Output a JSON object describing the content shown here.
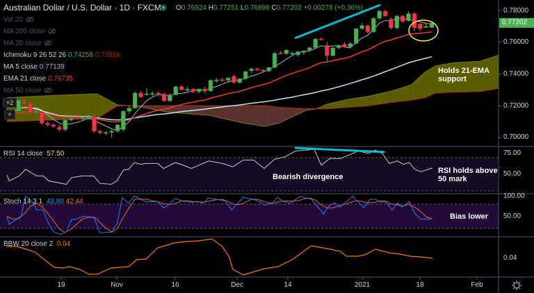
{
  "header": {
    "title": "Australian Dollar / U.S. Dollar · 1D · FXCM",
    "o_label": "O",
    "o": "0.76924",
    "h_label": "H",
    "h": "0.77251",
    "l_label": "L",
    "l": "0.76898",
    "c_label": "C",
    "c": "0.77202",
    "change": "+0.00278 (+0.36%)"
  },
  "legend": {
    "vol": "Vol 20",
    "ma200": "MA 200 close",
    "ma20": "MA 20 close",
    "ichimoku": "Ichimoku 9 26 52 26",
    "ichimoku_a": "0.74259",
    "ichimoku_b": "0.72816",
    "ma5": "MA 5 close",
    "ma5_value": "0.77139",
    "ema21": "EMA 21 close",
    "ema21_value": "0.76735",
    "ma50": "MA 50 close",
    "collapse_count": "+2",
    "collapse_arrow": "^"
  },
  "annotations": {
    "ema_support": "Holds 21-EMA support",
    "bearish_div": "Bearish divergence",
    "rsi_holds": "RSI holds above 50 mark",
    "bias_lower": "Bias lower"
  },
  "price_axis": {
    "ticks": [
      "0.78000",
      "0.76000",
      "0.74000",
      "0.72000",
      "0.70000"
    ],
    "current": "0.77202"
  },
  "panes": {
    "rsi": {
      "label": "RSI 14 close",
      "value": "57.50",
      "ticks": [
        "75.00",
        "50.00"
      ]
    },
    "stoch": {
      "label": "Stoch 14 3 1",
      "k": "43.80",
      "d": "42.44",
      "ticks": [
        "100.00",
        "50.00"
      ]
    },
    "bbw": {
      "label": "BBW 20 close 2",
      "value": "0.04",
      "ticks": [
        "0.04"
      ]
    }
  },
  "time_axis": [
    "19",
    "Nov",
    "16",
    "Dec",
    "14",
    "2021",
    "18",
    "Feb"
  ],
  "colors": {
    "up": "#4caf50",
    "down": "#f23645",
    "ma5": "#9fb7cf",
    "ema21": "#f23a2e",
    "ma_long": "#b2ebf2",
    "cloud_up": "#6b6b00",
    "cloud_down": "#6b3a35",
    "rsi": "#d8c8b8",
    "stoch_k": "#2979ff",
    "stoch_d": "#f2641d",
    "bbw": "#f57c00",
    "trend": "#00bcd4",
    "highlight": "#ffeb3b"
  },
  "chart_data": {
    "type": "candlestick",
    "title": "Australian Dollar / U.S. Dollar · 1D · FXCM",
    "ylim": [
      0.695,
      0.785
    ],
    "ohlc": [
      [
        0.717,
        0.7185,
        0.7135,
        0.7145
      ],
      [
        0.7145,
        0.717,
        0.713,
        0.7165
      ],
      [
        0.7165,
        0.724,
        0.716,
        0.7235
      ],
      [
        0.7225,
        0.724,
        0.721,
        0.7215
      ],
      [
        0.721,
        0.722,
        0.715,
        0.716
      ],
      [
        0.716,
        0.7175,
        0.715,
        0.7165
      ],
      [
        0.716,
        0.7165,
        0.708,
        0.709
      ],
      [
        0.709,
        0.71,
        0.707,
        0.708
      ],
      [
        0.708,
        0.709,
        0.706,
        0.707
      ],
      [
        0.7065,
        0.708,
        0.704,
        0.705
      ],
      [
        0.705,
        0.7115,
        0.704,
        0.711
      ],
      [
        0.711,
        0.7125,
        0.71,
        0.712
      ],
      [
        0.713,
        0.714,
        0.7115,
        0.712
      ],
      [
        0.712,
        0.7135,
        0.711,
        0.7128
      ],
      [
        0.7125,
        0.714,
        0.7115,
        0.713
      ],
      [
        0.713,
        0.714,
        0.703,
        0.704
      ],
      [
        0.704,
        0.705,
        0.702,
        0.703
      ],
      [
        0.703,
        0.704,
        0.7015,
        0.7032
      ],
      [
        0.7032,
        0.705,
        0.7,
        0.704
      ],
      [
        0.704,
        0.7085,
        0.703,
        0.708
      ],
      [
        0.705,
        0.717,
        0.704,
        0.7165
      ],
      [
        0.7165,
        0.72,
        0.715,
        0.7185
      ],
      [
        0.7185,
        0.729,
        0.718,
        0.728
      ],
      [
        0.728,
        0.729,
        0.725,
        0.7255
      ],
      [
        0.727,
        0.731,
        0.7265,
        0.7275
      ],
      [
        0.7275,
        0.729,
        0.726,
        0.7278
      ],
      [
        0.728,
        0.729,
        0.726,
        0.7276
      ],
      [
        0.7275,
        0.728,
        0.7225,
        0.723
      ],
      [
        0.723,
        0.728,
        0.7225,
        0.7268
      ],
      [
        0.7268,
        0.7325,
        0.7265,
        0.732
      ],
      [
        0.732,
        0.733,
        0.7295,
        0.73
      ],
      [
        0.73,
        0.732,
        0.729,
        0.7305
      ],
      [
        0.7305,
        0.731,
        0.728,
        0.7288
      ],
      [
        0.7288,
        0.731,
        0.728,
        0.7305
      ],
      [
        0.7305,
        0.732,
        0.728,
        0.7292
      ],
      [
        0.7292,
        0.7365,
        0.729,
        0.736
      ],
      [
        0.736,
        0.7375,
        0.7345,
        0.7362
      ],
      [
        0.7364,
        0.7375,
        0.735,
        0.736
      ],
      [
        0.736,
        0.738,
        0.735,
        0.7375
      ],
      [
        0.7385,
        0.7395,
        0.734,
        0.7345
      ],
      [
        0.7345,
        0.7375,
        0.734,
        0.737
      ],
      [
        0.737,
        0.742,
        0.736,
        0.7415
      ],
      [
        0.742,
        0.744,
        0.7405,
        0.7432
      ],
      [
        0.7432,
        0.744,
        0.742,
        0.7425
      ],
      [
        0.7425,
        0.743,
        0.7412,
        0.7418
      ],
      [
        0.7418,
        0.7445,
        0.741,
        0.744
      ],
      [
        0.744,
        0.754,
        0.7435,
        0.753
      ],
      [
        0.7532,
        0.7545,
        0.7525,
        0.7528
      ],
      [
        0.7528,
        0.7555,
        0.752,
        0.755
      ],
      [
        0.753,
        0.754,
        0.752,
        0.7532
      ],
      [
        0.752,
        0.7545,
        0.751,
        0.754
      ],
      [
        0.7535,
        0.755,
        0.752,
        0.7545
      ],
      [
        0.755,
        0.757,
        0.754,
        0.7565
      ],
      [
        0.7565,
        0.7625,
        0.756,
        0.762
      ],
      [
        0.7622,
        0.763,
        0.761,
        0.7618
      ],
      [
        0.758,
        0.76,
        0.748,
        0.7515
      ],
      [
        0.7515,
        0.757,
        0.751,
        0.7565
      ],
      [
        0.7565,
        0.7585,
        0.7555,
        0.758
      ],
      [
        0.7588,
        0.76,
        0.7565,
        0.757
      ],
      [
        0.757,
        0.76,
        0.756,
        0.7592
      ],
      [
        0.7592,
        0.769,
        0.7585,
        0.7685
      ],
      [
        0.7685,
        0.772,
        0.768,
        0.7705
      ],
      [
        0.7705,
        0.771,
        0.7655,
        0.7665
      ],
      [
        0.7665,
        0.776,
        0.766,
        0.775
      ],
      [
        0.775,
        0.7805,
        0.774,
        0.7795
      ],
      [
        0.7795,
        0.7805,
        0.776,
        0.7765
      ],
      [
        0.7745,
        0.7755,
        0.768,
        0.769
      ],
      [
        0.769,
        0.777,
        0.768,
        0.7765
      ],
      [
        0.7765,
        0.777,
        0.772,
        0.773
      ],
      [
        0.7735,
        0.7795,
        0.773,
        0.778
      ],
      [
        0.778,
        0.779,
        0.767,
        0.769
      ],
      [
        0.7715,
        0.772,
        0.767,
        0.7685
      ],
      [
        0.7692,
        0.7725,
        0.769,
        0.77
      ],
      [
        0.76924,
        0.77251,
        0.76898,
        0.77202
      ]
    ],
    "ichimoku_cloud": [
      [
        0,
        0.725,
        0.71
      ],
      [
        8,
        0.7265,
        0.711
      ],
      [
        15.5,
        0.7275,
        0.712
      ],
      [
        19,
        0.7205,
        0.72
      ],
      [
        22.7,
        0.7195,
        0.72
      ],
      [
        27.5,
        0.716,
        0.72
      ],
      [
        34.7,
        0.714,
        0.72
      ],
      [
        40.7,
        0.709,
        0.72
      ],
      [
        44.3,
        0.707,
        0.72
      ],
      [
        46.7,
        0.709,
        0.719
      ],
      [
        49,
        0.713,
        0.7185
      ],
      [
        51.4,
        0.717,
        0.7182
      ],
      [
        53.2,
        0.7181,
        0.718
      ],
      [
        55,
        0.721,
        0.718
      ],
      [
        58.6,
        0.724,
        0.719
      ],
      [
        62.2,
        0.726,
        0.72
      ],
      [
        65.8,
        0.729,
        0.722
      ],
      [
        69.4,
        0.733,
        0.7235
      ],
      [
        71.8,
        0.741,
        0.725
      ],
      [
        73.6,
        0.745,
        0.728
      ],
      [
        76.6,
        0.747,
        0.7285
      ],
      [
        81.3,
        0.748,
        0.729
      ],
      [
        84.6,
        0.752,
        0.731
      ]
    ],
    "rsi": [
      [
        0,
        49
      ],
      [
        0.4,
        42
      ],
      [
        2.1,
        48
      ],
      [
        3.2,
        56
      ],
      [
        5.1,
        48
      ],
      [
        6.2,
        48
      ],
      [
        7.2,
        42
      ],
      [
        10.2,
        38
      ],
      [
        11.1,
        46
      ],
      [
        12.9,
        48
      ],
      [
        14.9,
        48
      ],
      [
        16,
        39
      ],
      [
        17.9,
        38
      ],
      [
        18.9,
        42
      ],
      [
        20,
        55
      ],
      [
        20.9,
        56
      ],
      [
        21.9,
        64
      ],
      [
        23,
        62
      ],
      [
        23.9,
        63
      ],
      [
        25.9,
        63
      ],
      [
        26.9,
        57
      ],
      [
        28.9,
        64
      ],
      [
        29.9,
        62
      ],
      [
        31.7,
        57
      ],
      [
        34.7,
        66
      ],
      [
        37,
        63
      ],
      [
        38.8,
        59
      ],
      [
        40.6,
        67
      ],
      [
        42.4,
        67
      ],
      [
        44.2,
        57
      ],
      [
        46,
        68
      ],
      [
        47.8,
        71
      ],
      [
        49.6,
        78
      ],
      [
        51.4,
        79
      ],
      [
        52.8,
        80
      ],
      [
        54,
        61
      ],
      [
        55.5,
        69
      ],
      [
        57.3,
        69
      ],
      [
        59.1,
        74
      ],
      [
        60.3,
        78
      ],
      [
        62.1,
        75
      ],
      [
        63.3,
        79
      ],
      [
        64.5,
        75
      ],
      [
        65.7,
        63
      ],
      [
        67.1,
        66
      ],
      [
        68.1,
        62
      ],
      [
        69.1,
        64
      ],
      [
        70.1,
        56
      ],
      [
        71.1,
        53
      ],
      [
        73.1,
        57.5
      ]
    ],
    "stoch_k": [
      [
        0,
        50
      ],
      [
        0.4,
        30
      ],
      [
        2.4,
        50
      ],
      [
        3.2,
        100
      ],
      [
        4.4,
        84
      ],
      [
        5.1,
        66
      ],
      [
        6.2,
        66
      ],
      [
        7.2,
        30
      ],
      [
        8.1,
        11
      ],
      [
        9.2,
        5
      ],
      [
        10.2,
        12
      ],
      [
        11.1,
        41
      ],
      [
        11.9,
        43
      ],
      [
        13.1,
        50
      ],
      [
        14.9,
        48
      ],
      [
        16,
        9
      ],
      [
        17.9,
        11
      ],
      [
        18.9,
        30
      ],
      [
        19.8,
        96
      ],
      [
        20.9,
        82
      ],
      [
        21.9,
        100
      ],
      [
        23.9,
        86
      ],
      [
        25.9,
        86
      ],
      [
        26.9,
        71
      ],
      [
        27.5,
        75
      ],
      [
        28.9,
        94
      ],
      [
        30.2,
        87
      ],
      [
        31.9,
        84
      ],
      [
        32.6,
        87
      ],
      [
        33.7,
        82
      ],
      [
        34.6,
        95
      ],
      [
        36.7,
        90
      ],
      [
        37.6,
        87
      ],
      [
        38.6,
        65
      ],
      [
        40.6,
        97
      ],
      [
        42.7,
        90
      ],
      [
        44.4,
        78
      ],
      [
        45.6,
        82
      ],
      [
        46.5,
        97
      ],
      [
        47.4,
        87
      ],
      [
        48.6,
        82
      ],
      [
        50.4,
        99
      ],
      [
        52.3,
        92
      ],
      [
        54.4,
        56
      ],
      [
        55.3,
        76
      ],
      [
        56.3,
        83
      ],
      [
        57.2,
        73
      ],
      [
        59.4,
        99
      ],
      [
        61.3,
        71
      ],
      [
        62.4,
        92
      ],
      [
        63.3,
        92
      ],
      [
        64.2,
        85
      ],
      [
        65.1,
        85
      ],
      [
        66.2,
        66
      ],
      [
        67.1,
        83
      ],
      [
        67.9,
        73
      ],
      [
        69.1,
        86
      ],
      [
        70.1,
        57
      ],
      [
        71.1,
        43
      ],
      [
        73.1,
        43.8
      ]
    ],
    "bbw": [
      [
        0,
        0.057
      ],
      [
        1.8,
        0.057
      ],
      [
        4.8,
        0.049
      ],
      [
        8.1,
        0.027
      ],
      [
        9.6,
        0.026
      ],
      [
        10.8,
        0.028
      ],
      [
        12.5,
        0.024
      ],
      [
        14.1,
        0.017
      ],
      [
        15.5,
        0.017
      ],
      [
        17.9,
        0.026
      ],
      [
        20.9,
        0.028
      ],
      [
        22.3,
        0.038
      ],
      [
        23.9,
        0.039
      ],
      [
        25.9,
        0.055
      ],
      [
        28.7,
        0.062
      ],
      [
        30.5,
        0.064
      ],
      [
        32.9,
        0.065
      ],
      [
        35.2,
        0.068
      ],
      [
        37,
        0.057
      ],
      [
        38.2,
        0.042
      ],
      [
        38.8,
        0.024
      ],
      [
        40.6,
        0.016
      ],
      [
        41.8,
        0.019
      ],
      [
        44.2,
        0.025
      ],
      [
        46.6,
        0.028
      ],
      [
        49,
        0.038
      ],
      [
        52.3,
        0.058
      ],
      [
        55,
        0.054
      ],
      [
        57.3,
        0.05
      ],
      [
        58.3,
        0.043
      ],
      [
        60.3,
        0.043
      ],
      [
        61.5,
        0.045
      ],
      [
        63.3,
        0.053
      ],
      [
        65.7,
        0.048
      ],
      [
        67.5,
        0.046
      ],
      [
        69.3,
        0.043
      ],
      [
        71.1,
        0.042
      ],
      [
        73.1,
        0.04
      ]
    ]
  }
}
